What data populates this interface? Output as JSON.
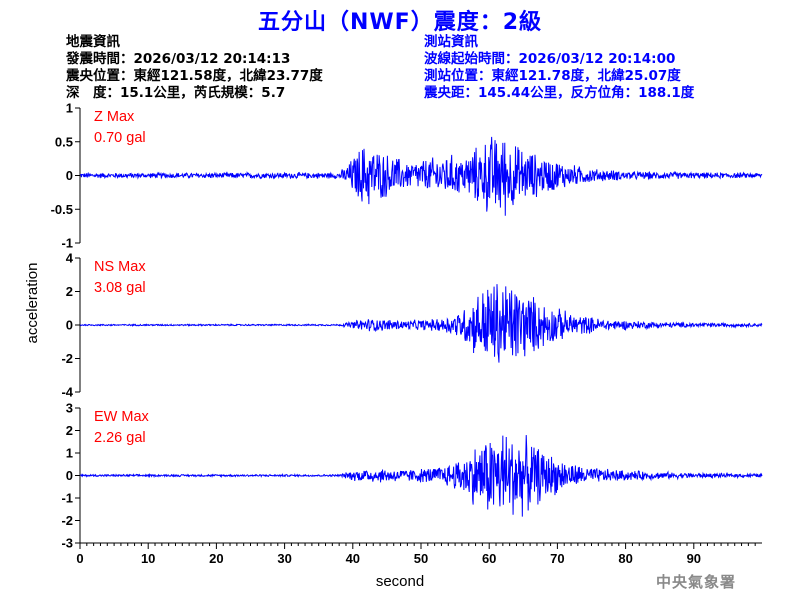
{
  "title": "五分山（NWF）震度：2級",
  "event_info": {
    "heading": "地震資訊",
    "time": "發震時間：2026/03/12 20:14:13",
    "epicenter": "震央位置：東經121.58度，北緯23.77度",
    "depth_magnitude": "深　度：15.1公里，芮氏規模：5.7"
  },
  "station_info": {
    "heading": "測站資訊",
    "wave_start": "波線起始時間：2026/03/12 20:14:00",
    "location": "測站位置：東經121.78度，北緯25.07度",
    "distance": "震央距：145.44公里，反方位角：188.1度"
  },
  "watermark": "中央氣象署",
  "colors": {
    "title": "#0000ff",
    "trace": "#0000ff",
    "max_label": "#ff0000",
    "station_info": "#0000ff"
  },
  "chart_data": {
    "type": "line",
    "xlabel": "second",
    "ylabel": "acceleration",
    "xlim": [
      0,
      100
    ],
    "x_ticks": [
      0,
      10,
      20,
      30,
      40,
      50,
      60,
      70,
      80,
      90
    ],
    "grid": false,
    "panels": [
      {
        "name": "Z",
        "max_label": "Z Max",
        "max_value": "0.70 gal",
        "ylim": [
          -1,
          1
        ],
        "y_ticks": [
          -1,
          -0.5,
          0,
          0.5,
          1
        ],
        "y_tick_labels": [
          "-1",
          "-0.5",
          "0",
          "0.5",
          "1"
        ],
        "envelope": {
          "x": [
            0,
            38,
            39.5,
            41,
            42,
            44,
            46,
            48,
            50,
            52,
            54,
            56,
            58,
            60,
            62,
            64,
            66,
            68,
            70,
            72,
            74,
            76,
            78,
            80,
            85,
            90,
            100
          ],
          "amplitude": [
            0.04,
            0.05,
            0.22,
            0.45,
            0.55,
            0.4,
            0.32,
            0.22,
            0.26,
            0.3,
            0.35,
            0.3,
            0.45,
            0.65,
            0.7,
            0.5,
            0.4,
            0.3,
            0.25,
            0.18,
            0.14,
            0.1,
            0.09,
            0.07,
            0.06,
            0.05,
            0.04
          ]
        }
      },
      {
        "name": "NS",
        "max_label": "NS Max",
        "max_value": "3.08 gal",
        "ylim": [
          -4,
          4
        ],
        "y_ticks": [
          -4,
          -2,
          0,
          2,
          4
        ],
        "y_tick_labels": [
          "-4",
          "-2",
          "0",
          "2",
          "4"
        ],
        "envelope": {
          "x": [
            0,
            38,
            40,
            42,
            44,
            48,
            52,
            54,
            56,
            58,
            60,
            62,
            64,
            66,
            68,
            70,
            72,
            74,
            76,
            78,
            80,
            85,
            90,
            100
          ],
          "amplitude": [
            0.05,
            0.05,
            0.25,
            0.45,
            0.4,
            0.3,
            0.4,
            0.6,
            1.0,
            2.0,
            2.9,
            3.08,
            2.7,
            2.0,
            1.5,
            1.1,
            0.8,
            0.6,
            0.45,
            0.35,
            0.3,
            0.2,
            0.15,
            0.1
          ]
        }
      },
      {
        "name": "EW",
        "max_label": "EW Max",
        "max_value": "2.26 gal",
        "ylim": [
          -3,
          3
        ],
        "y_ticks": [
          -3,
          -2,
          -1,
          0,
          1,
          2,
          3
        ],
        "y_tick_labels": [
          "-3",
          "-2",
          "-1",
          "0",
          "1",
          "2",
          "3"
        ],
        "envelope": {
          "x": [
            0,
            38,
            40,
            42,
            44,
            48,
            52,
            54,
            56,
            58,
            60,
            62,
            64,
            66,
            68,
            70,
            72,
            74,
            76,
            78,
            80,
            85,
            90,
            100
          ],
          "amplitude": [
            0.05,
            0.05,
            0.25,
            0.35,
            0.35,
            0.3,
            0.4,
            0.55,
            0.9,
            1.5,
            2.0,
            2.26,
            2.1,
            1.7,
            1.2,
            0.9,
            0.6,
            0.45,
            0.35,
            0.3,
            0.25,
            0.18,
            0.12,
            0.08
          ]
        }
      }
    ]
  }
}
